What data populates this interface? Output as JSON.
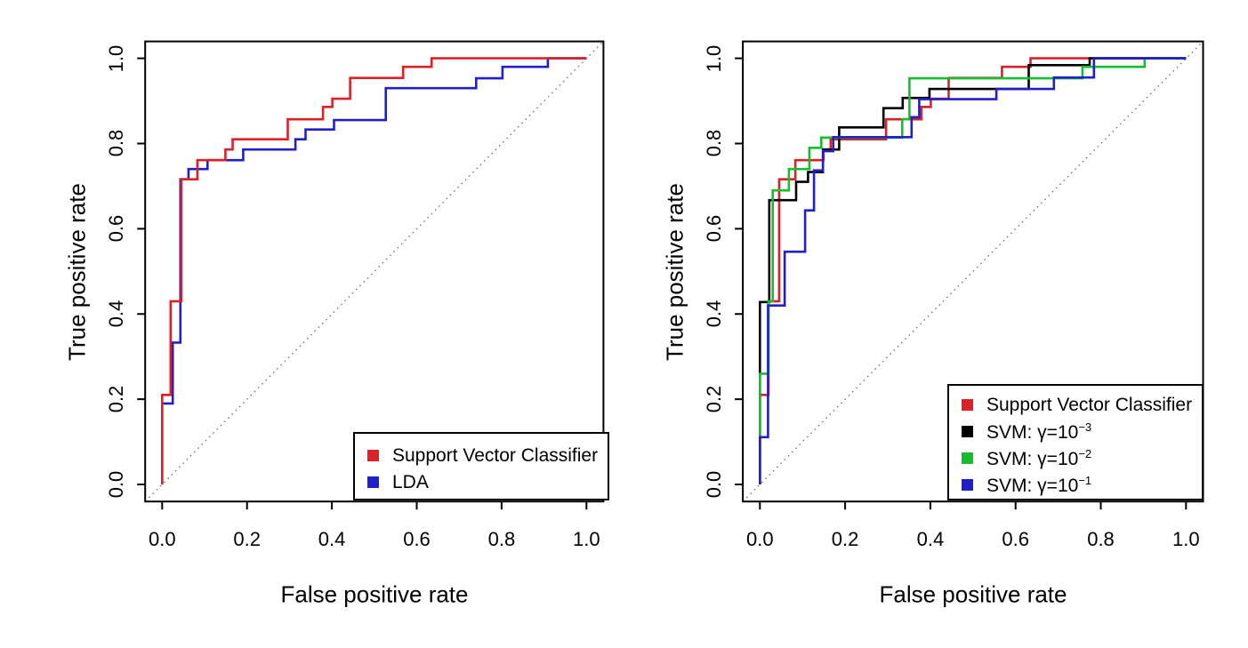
{
  "figure": {
    "background": "#ffffff",
    "axis_color": "#000000",
    "reference_line_color": "#7a7a7a"
  },
  "chart_data": [
    {
      "type": "line",
      "subtype": "roc-step-curves",
      "title": "",
      "xlabel": "False positive rate",
      "ylabel": "True positive rate",
      "xlim": [
        0,
        1
      ],
      "ylim": [
        0,
        1
      ],
      "xticks": [
        "0.0",
        "0.2",
        "0.4",
        "0.6",
        "0.8",
        "1.0"
      ],
      "yticks": [
        "0.0",
        "0.2",
        "0.4",
        "0.6",
        "0.8",
        "1.0"
      ],
      "grid": false,
      "diagonal_reference": true,
      "legend": {
        "position": "bottom-right",
        "entries": [
          {
            "label": "Support Vector Classifier",
            "label_exp": "",
            "color": "#dc2127"
          },
          {
            "label": "LDA",
            "label_exp": "",
            "color": "#2020c8"
          }
        ]
      },
      "series": [
        {
          "name": "LDA",
          "color": "#2020c8",
          "points": [
            [
              0,
              0
            ],
            [
              0,
              0.19
            ],
            [
              0.025,
              0.19
            ],
            [
              0.025,
              0.333
            ],
            [
              0.043,
              0.333
            ],
            [
              0.043,
              0.716
            ],
            [
              0.062,
              0.716
            ],
            [
              0.062,
              0.74
            ],
            [
              0.107,
              0.74
            ],
            [
              0.107,
              0.761
            ],
            [
              0.191,
              0.761
            ],
            [
              0.191,
              0.786
            ],
            [
              0.314,
              0.786
            ],
            [
              0.314,
              0.81
            ],
            [
              0.338,
              0.81
            ],
            [
              0.338,
              0.833
            ],
            [
              0.405,
              0.833
            ],
            [
              0.405,
              0.855
            ],
            [
              0.527,
              0.855
            ],
            [
              0.527,
              0.93
            ],
            [
              0.74,
              0.93
            ],
            [
              0.74,
              0.953
            ],
            [
              0.802,
              0.953
            ],
            [
              0.802,
              0.98
            ],
            [
              0.909,
              0.98
            ],
            [
              0.909,
              1
            ],
            [
              1,
              1
            ]
          ]
        },
        {
          "name": "Support Vector Classifier",
          "color": "#dc2127",
          "points": [
            [
              0,
              0
            ],
            [
              0,
              0.21
            ],
            [
              0.02,
              0.21
            ],
            [
              0.02,
              0.43
            ],
            [
              0.045,
              0.43
            ],
            [
              0.045,
              0.716
            ],
            [
              0.083,
              0.716
            ],
            [
              0.083,
              0.761
            ],
            [
              0.149,
              0.761
            ],
            [
              0.149,
              0.786
            ],
            [
              0.166,
              0.786
            ],
            [
              0.166,
              0.81
            ],
            [
              0.296,
              0.81
            ],
            [
              0.296,
              0.857
            ],
            [
              0.379,
              0.857
            ],
            [
              0.379,
              0.886
            ],
            [
              0.401,
              0.886
            ],
            [
              0.401,
              0.905
            ],
            [
              0.443,
              0.905
            ],
            [
              0.443,
              0.954
            ],
            [
              0.568,
              0.954
            ],
            [
              0.568,
              0.98
            ],
            [
              0.635,
              0.98
            ],
            [
              0.635,
              1
            ],
            [
              1,
              1
            ]
          ]
        }
      ]
    },
    {
      "type": "line",
      "subtype": "roc-step-curves",
      "title": "",
      "xlabel": "False positive rate",
      "ylabel": "True positive rate",
      "xlim": [
        0,
        1
      ],
      "ylim": [
        0,
        1
      ],
      "xticks": [
        "0.0",
        "0.2",
        "0.4",
        "0.6",
        "0.8",
        "1.0"
      ],
      "yticks": [
        "0.0",
        "0.2",
        "0.4",
        "0.6",
        "0.8",
        "1.0"
      ],
      "grid": false,
      "diagonal_reference": true,
      "legend": {
        "position": "bottom-right",
        "entries": [
          {
            "label": "Support Vector Classifier",
            "label_exp": "",
            "color": "#dc2127"
          },
          {
            "label": "SVM: γ=10",
            "label_exp": "−3",
            "color": "#000000"
          },
          {
            "label": "SVM: γ=10",
            "label_exp": "−2",
            "color": "#16be2d"
          },
          {
            "label": "SVM: γ=10",
            "label_exp": "−1",
            "color": "#2020c8"
          }
        ]
      },
      "series": [
        {
          "name": "Support Vector Classifier",
          "color": "#dc2127",
          "points": [
            [
              0,
              0
            ],
            [
              0,
              0.21
            ],
            [
              0.02,
              0.21
            ],
            [
              0.02,
              0.43
            ],
            [
              0.045,
              0.43
            ],
            [
              0.045,
              0.716
            ],
            [
              0.083,
              0.716
            ],
            [
              0.083,
              0.761
            ],
            [
              0.149,
              0.761
            ],
            [
              0.149,
              0.786
            ],
            [
              0.166,
              0.786
            ],
            [
              0.166,
              0.81
            ],
            [
              0.296,
              0.81
            ],
            [
              0.296,
              0.857
            ],
            [
              0.379,
              0.857
            ],
            [
              0.379,
              0.886
            ],
            [
              0.401,
              0.886
            ],
            [
              0.401,
              0.905
            ],
            [
              0.443,
              0.905
            ],
            [
              0.443,
              0.954
            ],
            [
              0.568,
              0.954
            ],
            [
              0.568,
              0.98
            ],
            [
              0.635,
              0.98
            ],
            [
              0.635,
              1
            ],
            [
              1,
              1
            ]
          ]
        },
        {
          "name": "SVM: γ=10^−3",
          "color": "#000000",
          "points": [
            [
              0,
              0
            ],
            [
              0,
              0.428
            ],
            [
              0.022,
              0.428
            ],
            [
              0.022,
              0.667
            ],
            [
              0.085,
              0.667
            ],
            [
              0.085,
              0.71
            ],
            [
              0.113,
              0.71
            ],
            [
              0.113,
              0.733
            ],
            [
              0.148,
              0.733
            ],
            [
              0.148,
              0.786
            ],
            [
              0.186,
              0.786
            ],
            [
              0.186,
              0.838
            ],
            [
              0.29,
              0.838
            ],
            [
              0.29,
              0.883
            ],
            [
              0.335,
              0.883
            ],
            [
              0.335,
              0.907
            ],
            [
              0.398,
              0.907
            ],
            [
              0.398,
              0.928
            ],
            [
              0.631,
              0.928
            ],
            [
              0.631,
              0.984
            ],
            [
              0.774,
              0.984
            ],
            [
              0.774,
              1
            ],
            [
              1,
              1
            ]
          ]
        },
        {
          "name": "SVM: γ=10^−2",
          "color": "#16be2d",
          "points": [
            [
              0,
              0
            ],
            [
              0,
              0.26
            ],
            [
              0.02,
              0.26
            ],
            [
              0.02,
              0.43
            ],
            [
              0.03,
              0.43
            ],
            [
              0.03,
              0.69
            ],
            [
              0.068,
              0.69
            ],
            [
              0.068,
              0.74
            ],
            [
              0.116,
              0.74
            ],
            [
              0.116,
              0.79
            ],
            [
              0.144,
              0.79
            ],
            [
              0.144,
              0.814
            ],
            [
              0.334,
              0.814
            ],
            [
              0.334,
              0.857
            ],
            [
              0.351,
              0.857
            ],
            [
              0.351,
              0.953
            ],
            [
              0.757,
              0.953
            ],
            [
              0.757,
              0.98
            ],
            [
              0.903,
              0.98
            ],
            [
              0.903,
              1
            ],
            [
              1,
              1
            ]
          ]
        },
        {
          "name": "SVM: γ=10^−1",
          "color": "#2020c8",
          "points": [
            [
              0,
              0
            ],
            [
              0,
              0.111
            ],
            [
              0.019,
              0.111
            ],
            [
              0.019,
              0.42
            ],
            [
              0.058,
              0.42
            ],
            [
              0.058,
              0.546
            ],
            [
              0.106,
              0.546
            ],
            [
              0.106,
              0.643
            ],
            [
              0.127,
              0.643
            ],
            [
              0.127,
              0.737
            ],
            [
              0.148,
              0.737
            ],
            [
              0.148,
              0.782
            ],
            [
              0.172,
              0.782
            ],
            [
              0.172,
              0.815
            ],
            [
              0.356,
              0.815
            ],
            [
              0.356,
              0.862
            ],
            [
              0.374,
              0.862
            ],
            [
              0.374,
              0.904
            ],
            [
              0.555,
              0.904
            ],
            [
              0.555,
              0.928
            ],
            [
              0.69,
              0.928
            ],
            [
              0.69,
              0.955
            ],
            [
              0.784,
              0.955
            ],
            [
              0.784,
              1
            ],
            [
              1,
              1
            ]
          ]
        }
      ]
    }
  ]
}
